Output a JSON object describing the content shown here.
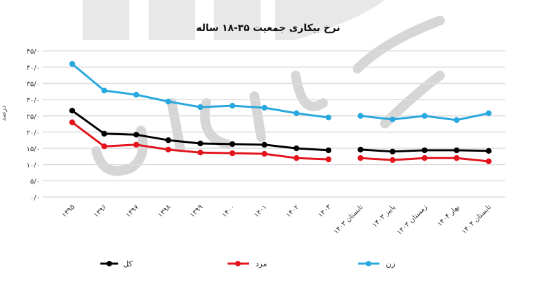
{
  "chart_data": {
    "type": "line",
    "title": "نرخ بیکاری جمعیت ۳۵-۱۸ ساله",
    "xlabel": "",
    "ylabel": "درصد",
    "ylim": [
      0,
      45
    ],
    "yticks": [
      0,
      5,
      10,
      15,
      20,
      25,
      30,
      35,
      40,
      45
    ],
    "ytick_labels": [
      "۰/۰",
      "۵/۰",
      "۱۰/۰",
      "۱۵/۰",
      "۲۰/۰",
      "۲۵/۰",
      "۳۰/۰",
      "۳۵/۰",
      "۴۰/۰",
      "۴۵/۰"
    ],
    "grid": true,
    "legend_position": "bottom",
    "categories": [
      "۱۳۹۵",
      "۱۳۹۶",
      "۱۳۹۷",
      "۱۳۹۸",
      "۱۳۹۹",
      "۱۴۰۰",
      "۱۴۰۱",
      "۱۴۰۲",
      "۱۴۰۳",
      "تابستان ۱۴۰۳",
      "پاییز ۱۴۰۳",
      "زمستان ۱۴۰۳",
      "بهار ۱۴۰۴",
      "تابستان ۱۴۰۴"
    ],
    "segment_break_after_index": 8,
    "series": [
      {
        "name": "کل",
        "color": "#000000",
        "values": [
          26.6,
          19.5,
          19.2,
          17.5,
          16.5,
          16.3,
          16.1,
          15.0,
          14.4,
          14.6,
          14.0,
          14.4,
          14.4,
          14.2
        ]
      },
      {
        "name": "مرد",
        "color": "#e3141b",
        "values": [
          23.0,
          15.6,
          16.1,
          14.6,
          13.7,
          13.5,
          13.3,
          12.0,
          11.6,
          12.0,
          11.4,
          12.0,
          12.0,
          11.0
        ]
      },
      {
        "name": "زن",
        "color": "#29a8df",
        "values": [
          41.0,
          32.8,
          31.5,
          29.4,
          27.7,
          28.1,
          27.5,
          25.8,
          24.5,
          25.0,
          23.9,
          25.0,
          23.7,
          25.8
        ]
      }
    ]
  },
  "legend": {
    "total_label": "کل",
    "male_label": "مرد",
    "female_label": "زن"
  }
}
